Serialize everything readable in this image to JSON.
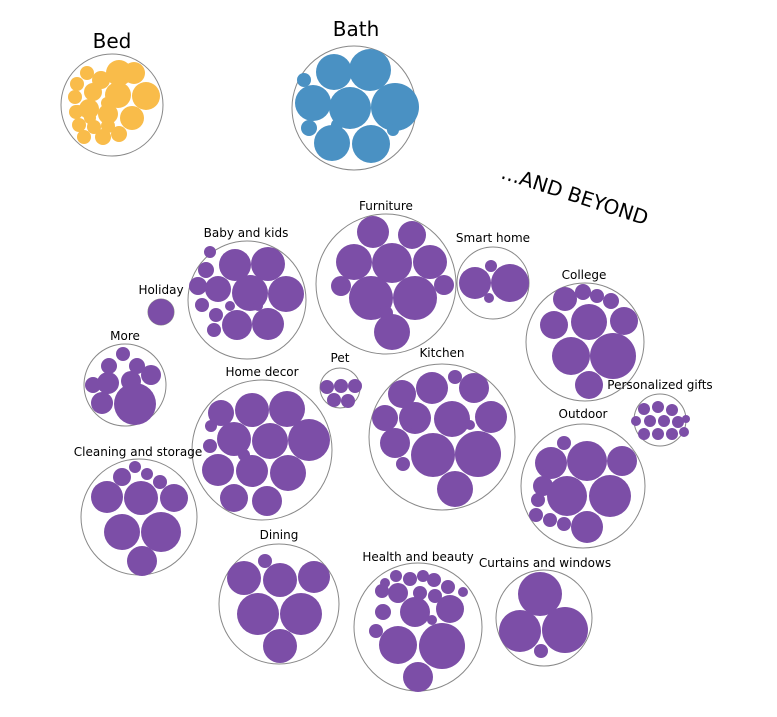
{
  "chart_data": {
    "type": "packed-bubble",
    "callout": "...AND BEYOND",
    "colors": {
      "bed": "#f9bc4a",
      "bath": "#4a91c3",
      "beyond": "#7c4ea7"
    },
    "groups": [
      {
        "name": "Bed",
        "color": "bed",
        "bubbles": 22
      },
      {
        "name": "Bath",
        "color": "bath",
        "bubbles": 11
      },
      {
        "name": "Baby and kids",
        "color": "beyond",
        "bubbles": 15
      },
      {
        "name": "Furniture",
        "color": "beyond",
        "bubbles": 11
      },
      {
        "name": "Smart home",
        "color": "beyond",
        "bubbles": 4
      },
      {
        "name": "College",
        "color": "beyond",
        "bubbles": 10
      },
      {
        "name": "Holiday",
        "color": "beyond",
        "bubbles": 1
      },
      {
        "name": "More",
        "color": "beyond",
        "bubbles": 9
      },
      {
        "name": "Home decor",
        "color": "beyond",
        "bubbles": 14
      },
      {
        "name": "Pet",
        "color": "beyond",
        "bubbles": 5
      },
      {
        "name": "Kitchen",
        "color": "beyond",
        "bubbles": 16
      },
      {
        "name": "Personalized gifts",
        "color": "beyond",
        "bubbles": 12
      },
      {
        "name": "Outdoor",
        "color": "beyond",
        "bubbles": 14
      },
      {
        "name": "Cleaning and storage",
        "color": "beyond",
        "bubbles": 10
      },
      {
        "name": "Dining",
        "color": "beyond",
        "bubbles": 7
      },
      {
        "name": "Health and beauty",
        "color": "beyond",
        "bubbles": 19
      },
      {
        "name": "Curtains and windows",
        "color": "beyond",
        "bubbles": 4
      }
    ]
  }
}
